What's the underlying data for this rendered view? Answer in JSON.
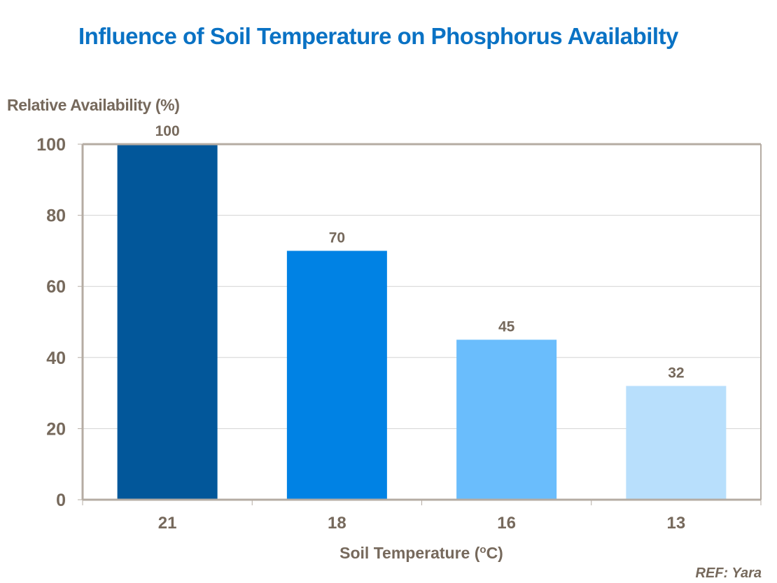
{
  "chart_data": {
    "type": "bar",
    "title": "Influence of Soil Temperature on Phosphorus Availabilty",
    "xlabel": "Soil Temperature (oC)",
    "xlabel_parts": {
      "prefix": "Soil Temperature (",
      "superscript": "o",
      "suffix": "C)"
    },
    "ylabel": "Relative Availability (%)",
    "categories": [
      "21",
      "18",
      "16",
      "13"
    ],
    "values": [
      100,
      70,
      45,
      32
    ],
    "data_labels": [
      "100",
      "70",
      "45",
      "32"
    ],
    "bar_colors": [
      "#02579a",
      "#0082e4",
      "#6abdfc",
      "#b8dffc"
    ],
    "ylim": [
      0,
      100
    ],
    "yticks": [
      0,
      20,
      40,
      60,
      80,
      100
    ],
    "ytick_labels": [
      "0",
      "20",
      "40",
      "60",
      "80",
      "100"
    ],
    "grid": true,
    "legend": "none",
    "annotation": "REF: Yara"
  },
  "colors": {
    "title": "#0a72c4",
    "text": "#76695c",
    "axis": "#b5aca3",
    "grid": "#d3d3d3"
  }
}
